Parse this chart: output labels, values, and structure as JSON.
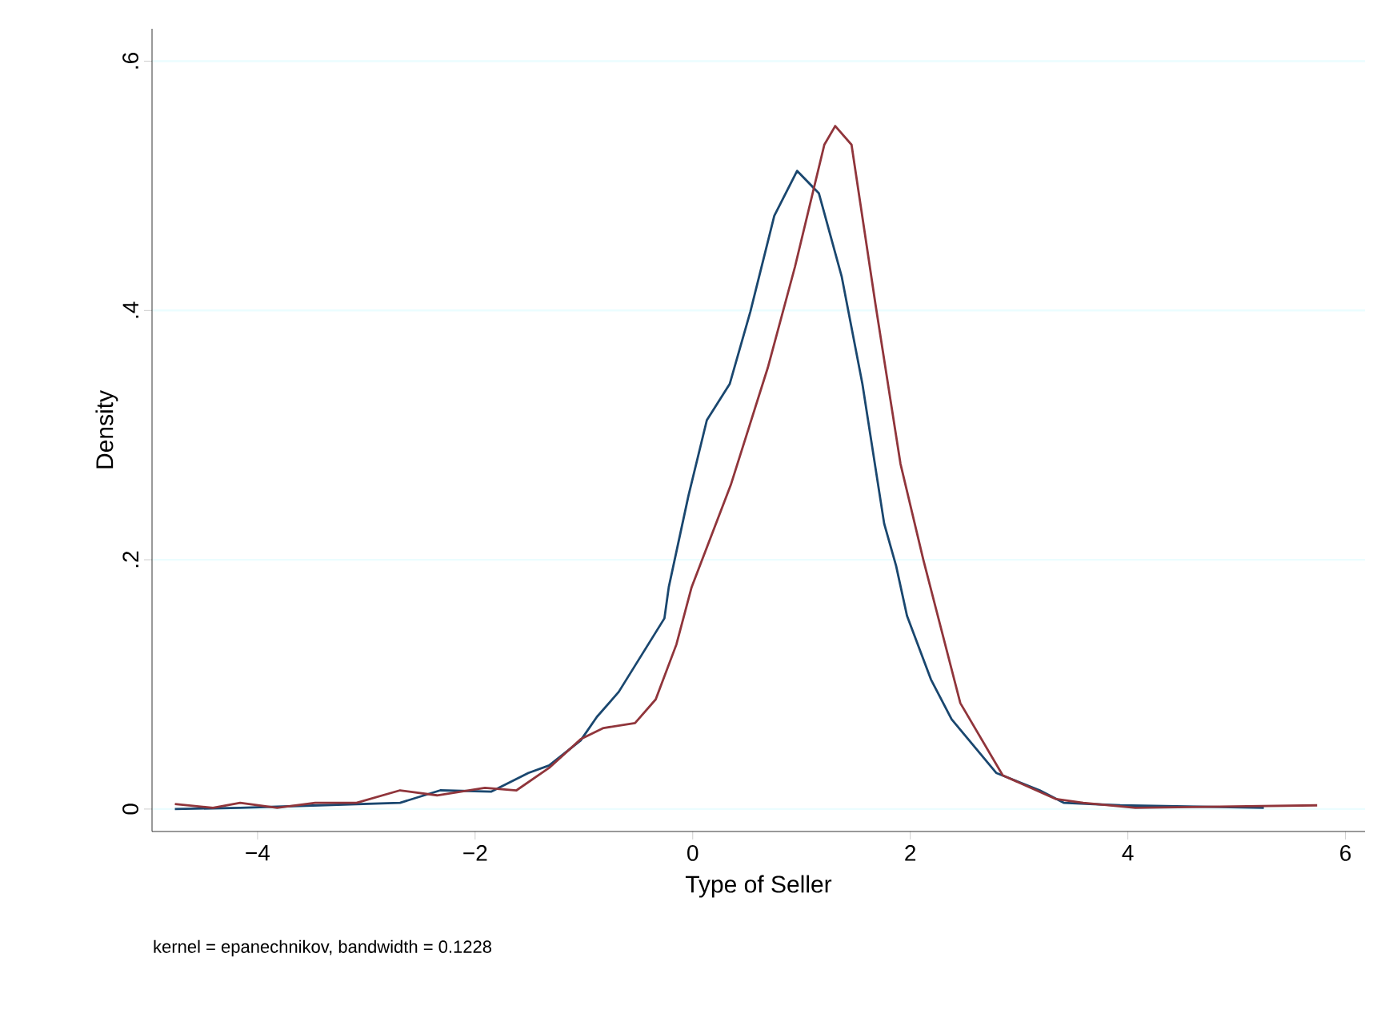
{
  "chart_data": {
    "type": "line",
    "xlabel": "Type of Seller",
    "ylabel": "Density",
    "annotations": [
      "kernel = epanechnikov, bandwidth = 0.1228"
    ],
    "xlim": [
      -4.97,
      6.18
    ],
    "ylim": [
      -0.018,
      0.626
    ],
    "xticks": [
      {
        "value": -4,
        "label": "−4"
      },
      {
        "value": -2,
        "label": "−2"
      },
      0,
      2,
      4,
      6
    ],
    "yticks": [
      0,
      {
        "value": 0.2,
        "label": ".2"
      },
      {
        "value": 0.4,
        "label": ".4"
      },
      {
        "value": 0.6,
        "label": ".6"
      }
    ],
    "grid": "y",
    "series": [
      {
        "color": "#1a476f",
        "x": [
          -4.76,
          -4.16,
          -3.43,
          -2.69,
          -2.32,
          -1.85,
          -1.51,
          -1.32,
          -1.03,
          -0.88,
          -0.68,
          -0.26,
          -0.22,
          -0.04,
          0.13,
          0.34,
          0.53,
          0.75,
          0.96,
          1.16,
          1.37,
          1.56,
          1.76,
          1.87,
          1.97,
          2.19,
          2.38,
          2.79,
          3.19,
          3.41,
          3.93,
          5.25
        ],
        "values": [
          0.0,
          0.001,
          0.003,
          0.005,
          0.015,
          0.014,
          0.029,
          0.035,
          0.055,
          0.074,
          0.094,
          0.153,
          0.178,
          0.251,
          0.312,
          0.341,
          0.399,
          0.476,
          0.512,
          0.494,
          0.427,
          0.341,
          0.229,
          0.195,
          0.155,
          0.104,
          0.072,
          0.029,
          0.015,
          0.005,
          0.003,
          0.001
        ]
      },
      {
        "color": "#90353b",
        "x": [
          -4.76,
          -4.41,
          -4.16,
          -3.82,
          -3.47,
          -3.09,
          -2.69,
          -2.35,
          -1.91,
          -1.62,
          -1.32,
          -1.03,
          -0.82,
          -0.53,
          -0.34,
          -0.15,
          -0.01,
          0.35,
          0.69,
          0.94,
          1.21,
          1.31,
          1.46,
          1.68,
          1.91,
          2.12,
          2.46,
          2.85,
          3.34,
          3.59,
          4.07,
          5.74
        ],
        "values": [
          0.004,
          0.001,
          0.005,
          0.001,
          0.005,
          0.005,
          0.015,
          0.011,
          0.017,
          0.015,
          0.033,
          0.056,
          0.065,
          0.069,
          0.088,
          0.132,
          0.178,
          0.26,
          0.354,
          0.435,
          0.533,
          0.548,
          0.533,
          0.405,
          0.277,
          0.2,
          0.085,
          0.027,
          0.008,
          0.005,
          0.001,
          0.003
        ]
      }
    ]
  }
}
